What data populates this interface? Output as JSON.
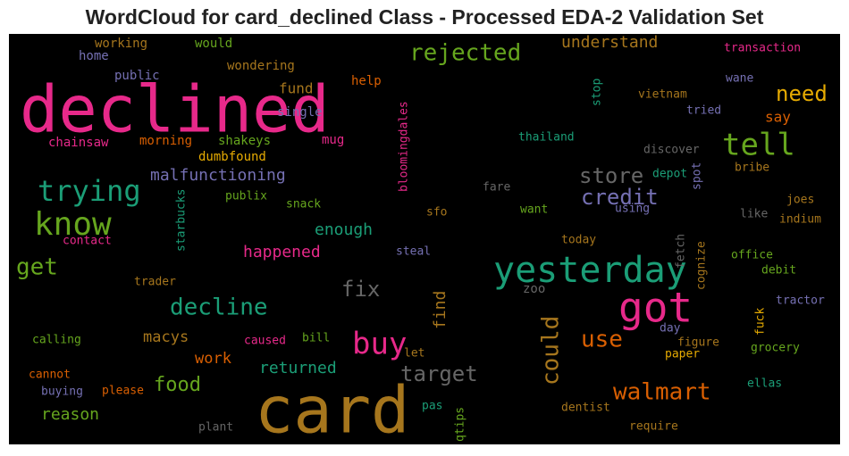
{
  "title": "WordCloud for card_declined Class - Processed EDA-2 Validation Set",
  "words": [
    {
      "text": "declined",
      "color": "#e7298a"
    },
    {
      "text": "card",
      "color": "#a6761d"
    },
    {
      "text": "got",
      "color": "#e7298a"
    },
    {
      "text": "yesterday",
      "color": "#1b9e77"
    },
    {
      "text": "know",
      "color": "#66a61e"
    },
    {
      "text": "tell",
      "color": "#66a61e"
    },
    {
      "text": "trying",
      "color": "#1b9e77"
    },
    {
      "text": "buy",
      "color": "#e7298a"
    },
    {
      "text": "rejected",
      "color": "#66a61e"
    },
    {
      "text": "decline",
      "color": "#1b9e77"
    },
    {
      "text": "walmart",
      "color": "#d95f02"
    },
    {
      "text": "store",
      "color": "#666666"
    },
    {
      "text": "credit",
      "color": "#7570b3"
    },
    {
      "text": "need",
      "color": "#e6ab02"
    },
    {
      "text": "get",
      "color": "#66a61e"
    },
    {
      "text": "fix",
      "color": "#666666"
    },
    {
      "text": "use",
      "color": "#d95f02"
    },
    {
      "text": "target",
      "color": "#666666"
    },
    {
      "text": "food",
      "color": "#66a61e"
    },
    {
      "text": "could",
      "color": "#a6761d"
    },
    {
      "text": "understand",
      "color": "#a6761d"
    },
    {
      "text": "malfunctioning",
      "color": "#7570b3"
    },
    {
      "text": "happened",
      "color": "#e7298a"
    },
    {
      "text": "enough",
      "color": "#1b9e77"
    },
    {
      "text": "returned",
      "color": "#1b9e77"
    },
    {
      "text": "reason",
      "color": "#66a61e"
    },
    {
      "text": "macys",
      "color": "#a6761d"
    },
    {
      "text": "work",
      "color": "#d95f02"
    },
    {
      "text": "fund",
      "color": "#a6761d"
    },
    {
      "text": "say",
      "color": "#d95f02"
    },
    {
      "text": "find",
      "color": "#a6761d"
    },
    {
      "text": "working",
      "color": "#a6761d"
    },
    {
      "text": "would",
      "color": "#66a61e"
    },
    {
      "text": "home",
      "color": "#7570b3"
    },
    {
      "text": "public",
      "color": "#7570b3"
    },
    {
      "text": "wondering",
      "color": "#a6761d"
    },
    {
      "text": "help",
      "color": "#d95f02"
    },
    {
      "text": "single",
      "color": "#7570b3"
    },
    {
      "text": "mug",
      "color": "#e7298a"
    },
    {
      "text": "chainsaw",
      "color": "#e7298a"
    },
    {
      "text": "morning",
      "color": "#d95f02"
    },
    {
      "text": "shakeys",
      "color": "#66a61e"
    },
    {
      "text": "dumbfound",
      "color": "#e6ab02"
    },
    {
      "text": "bloomingdales",
      "color": "#e7298a"
    },
    {
      "text": "starbucks",
      "color": "#1b9e77"
    },
    {
      "text": "publix",
      "color": "#66a61e"
    },
    {
      "text": "snack",
      "color": "#66a61e"
    },
    {
      "text": "sfo",
      "color": "#a6761d"
    },
    {
      "text": "contact",
      "color": "#e7298a"
    },
    {
      "text": "steal",
      "color": "#7570b3"
    },
    {
      "text": "trader",
      "color": "#a6761d"
    },
    {
      "text": "zoo",
      "color": "#666666"
    },
    {
      "text": "calling",
      "color": "#66a61e"
    },
    {
      "text": "caused",
      "color": "#e7298a"
    },
    {
      "text": "bill",
      "color": "#66a61e"
    },
    {
      "text": "let",
      "color": "#a6761d"
    },
    {
      "text": "cannot",
      "color": "#d95f02"
    },
    {
      "text": "buying",
      "color": "#7570b3"
    },
    {
      "text": "please",
      "color": "#d95f02"
    },
    {
      "text": "pas",
      "color": "#1b9e77"
    },
    {
      "text": "qtips",
      "color": "#66a61e"
    },
    {
      "text": "plant",
      "color": "#666666"
    },
    {
      "text": "transaction",
      "color": "#e7298a"
    },
    {
      "text": "wane",
      "color": "#7570b3"
    },
    {
      "text": "stop",
      "color": "#1b9e77"
    },
    {
      "text": "vietnam",
      "color": "#a6761d"
    },
    {
      "text": "tried",
      "color": "#7570b3"
    },
    {
      "text": "thailand",
      "color": "#1b9e77"
    },
    {
      "text": "discover",
      "color": "#666666"
    },
    {
      "text": "bribe",
      "color": "#a6761d"
    },
    {
      "text": "depot",
      "color": "#1b9e77"
    },
    {
      "text": "spot",
      "color": "#7570b3"
    },
    {
      "text": "fare",
      "color": "#666666"
    },
    {
      "text": "joes",
      "color": "#a6761d"
    },
    {
      "text": "want",
      "color": "#66a61e"
    },
    {
      "text": "using",
      "color": "#7570b3"
    },
    {
      "text": "like",
      "color": "#666666"
    },
    {
      "text": "indium",
      "color": "#a6761d"
    },
    {
      "text": "today",
      "color": "#a6761d"
    },
    {
      "text": "fetch",
      "color": "#666666"
    },
    {
      "text": "cognize",
      "color": "#a6761d"
    },
    {
      "text": "office",
      "color": "#66a61e"
    },
    {
      "text": "debit",
      "color": "#66a61e"
    },
    {
      "text": "tractor",
      "color": "#7570b3"
    },
    {
      "text": "fuck",
      "color": "#e6ab02"
    },
    {
      "text": "day",
      "color": "#7570b3"
    },
    {
      "text": "figure",
      "color": "#a6761d"
    },
    {
      "text": "grocery",
      "color": "#66a61e"
    },
    {
      "text": "paper",
      "color": "#e6ab02"
    },
    {
      "text": "ellas",
      "color": "#1b9e77"
    },
    {
      "text": "dentist",
      "color": "#a6761d"
    },
    {
      "text": "require",
      "color": "#a6761d"
    }
  ]
}
